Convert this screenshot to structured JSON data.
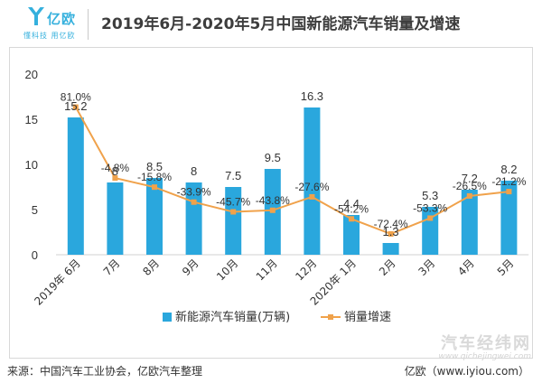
{
  "header": {
    "logo_name": "亿欧",
    "logo_tagline": "懂科技 用亿欧",
    "title": "2019年6月-2020年5月中国新能源汽车销量及增速"
  },
  "footer": {
    "source": "来源：中国汽车工业协会，亿欧汽车整理",
    "brand": "亿欧（www.iyiou.com）"
  },
  "watermark": {
    "name": "汽车经纬网",
    "url": "www.qichejingwei.com"
  },
  "colors": {
    "bar": "#2aa7dd",
    "line": "#f0a24b",
    "text": "#333333",
    "logo": "#35b0dd"
  },
  "chart_data": {
    "type": "bar",
    "categories": [
      "2019年 6月",
      "7月",
      "8月",
      "9月",
      "10月",
      "11月",
      "12月",
      "2020年 1月",
      "2月",
      "3月",
      "4月",
      "5月"
    ],
    "ylim": [
      0,
      20
    ],
    "yticks": [
      0,
      5,
      10,
      15,
      20
    ],
    "series": [
      {
        "name": "新能源汽车销量(万辆)",
        "type": "bar",
        "values": [
          15.2,
          8,
          8.5,
          8,
          7.5,
          9.5,
          16.3,
          4.4,
          1.3,
          5.3,
          7.2,
          8.2
        ],
        "labels": [
          "15.2",
          "8",
          "8.5",
          "8",
          "7.5",
          "9.5",
          "16.3",
          "4.4",
          "1.3",
          "5.3",
          "7.2",
          "8.2"
        ]
      },
      {
        "name": "销量增速",
        "type": "line",
        "values": [
          81.0,
          -4.8,
          -15.8,
          -33.9,
          -45.7,
          -43.8,
          -27.6,
          -54.2,
          -72.4,
          -53.3,
          -26.5,
          -21.2
        ],
        "labels": [
          "81.0%",
          "-4.8%",
          "-15.8%",
          "-33.9%",
          "-45.7%",
          "-43.8%",
          "-27.6%",
          "-54.2%",
          "-72.4%",
          "-53.3%",
          "-26.5%",
          "-21.2%"
        ],
        "ylim": [
          -150,
          110
        ]
      }
    ],
    "legend_position": "bottom",
    "grid": false
  }
}
